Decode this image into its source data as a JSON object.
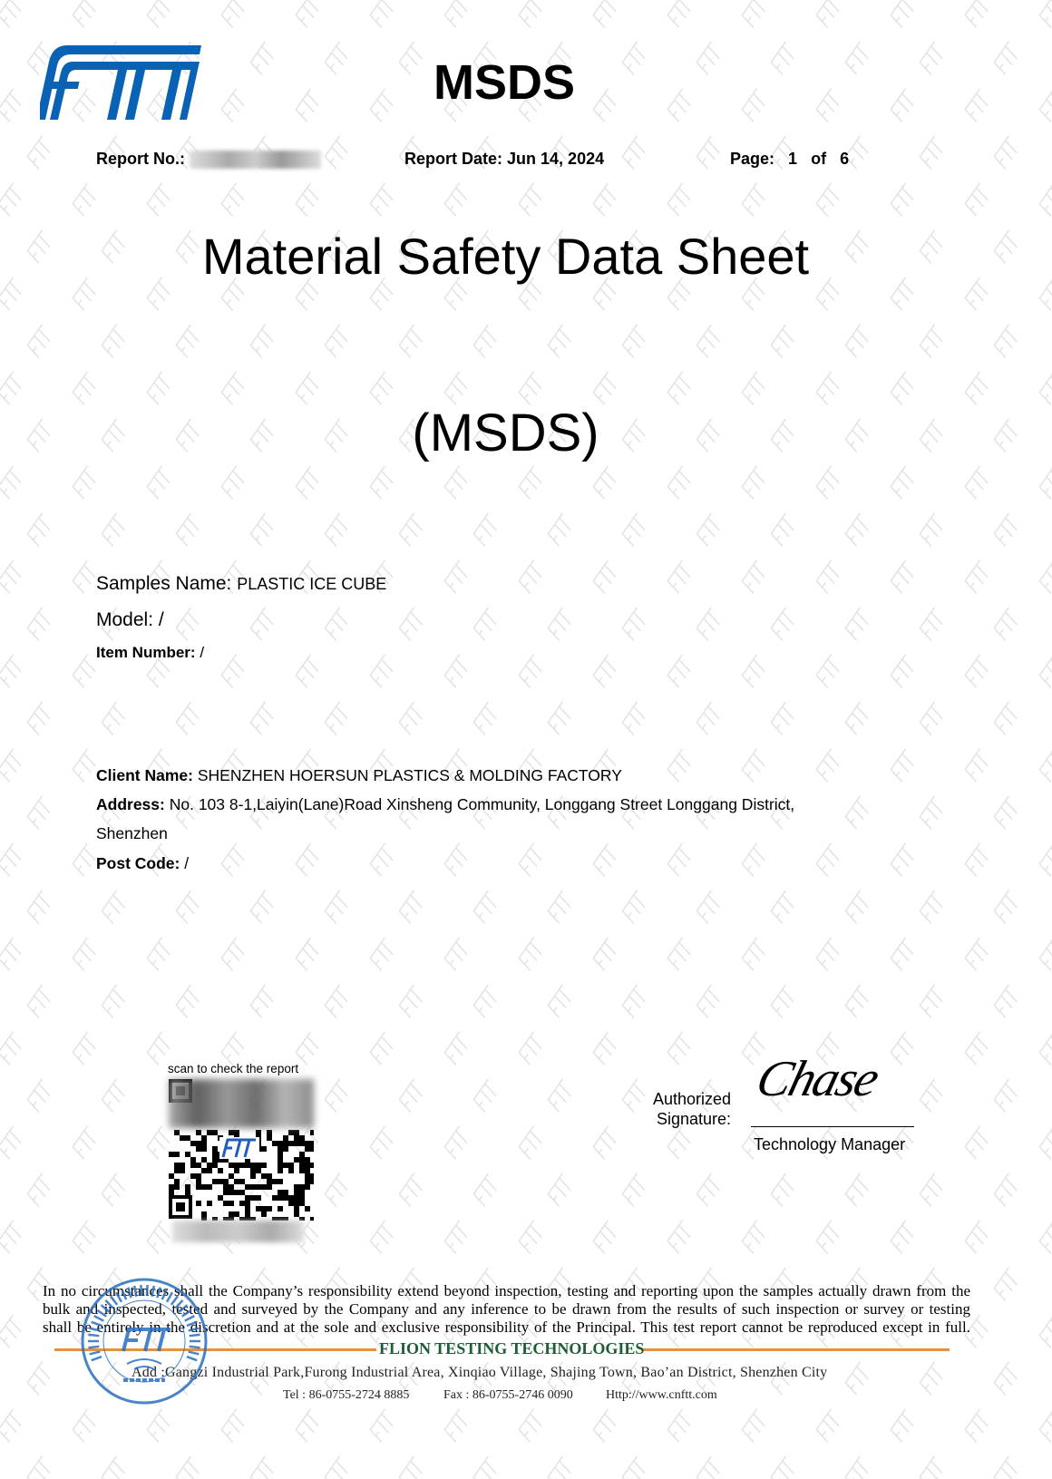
{
  "watermark": "FTT",
  "logo": {
    "text": "FTT",
    "color": "#0a62b4"
  },
  "header": {
    "title": "MSDS",
    "report_no_label": "Report No.:",
    "report_date_label": "Report Date:",
    "report_date": "Jun 14, 2024",
    "page_label": "Page:",
    "page_current": "1",
    "page_of": "of",
    "page_total": "6"
  },
  "document": {
    "title": "Material Safety Data Sheet",
    "subtitle": "(MSDS)"
  },
  "sample": {
    "name_label": "Samples Name:",
    "name": "PLASTIC ICE CUBE",
    "model_label": "Model:",
    "model": "/",
    "item_label": "Item Number:",
    "item": "/"
  },
  "client": {
    "name_label": "Client Name:",
    "name": "SHENZHEN HOERSUN PLASTICS & MOLDING FACTORY",
    "address_label": "Address:",
    "address_line1": "No. 103 8-1,Laiyin(Lane)Road Xinsheng Community, Longgang Street Longgang District,",
    "address_line2": "Shenzhen",
    "post_label": "Post Code:",
    "post": "/"
  },
  "qr": {
    "caption": "scan to check the report"
  },
  "signature": {
    "label_line1": "Authorized",
    "label_line2": "Signature:",
    "signature_text": "Chase",
    "title": "Technology Manager"
  },
  "footer": {
    "disclaimer": [
      "In no circumstances shall the Company’s responsibility extend beyond inspection, testing and reporting upon the samples actually drawn from the",
      "bulk and inspected, tested and surveyed by the Company and any inference to be drawn from the results of such inspection or survey or testing",
      "shall be entirely in the discretion and at the sole and exclusive responsibility of the Principal. This test report cannot be reproduced except in full."
    ],
    "company": "FLION TESTING TECHNOLOGIES",
    "company_color": "#1d5c34",
    "line_color": "#e8913c",
    "address": "Add :Gangzi Industrial Park,Furong Industrial Area, Xinqiao Village, Shajing Town, Bao’an District, Shenzhen City",
    "tel": "Tel  : 86-0755-2724 8885",
    "fax": "Fax : 86-0755-2746 0090",
    "web": "Http://www.cnftt.com"
  },
  "stamp": {
    "ring_text": "SHENZHEN FLION TESTING TECHNOLOGIES CO.,LTD.",
    "center": "FTT",
    "bottom": "TESTING LAB",
    "color": "#2a6fc0"
  }
}
